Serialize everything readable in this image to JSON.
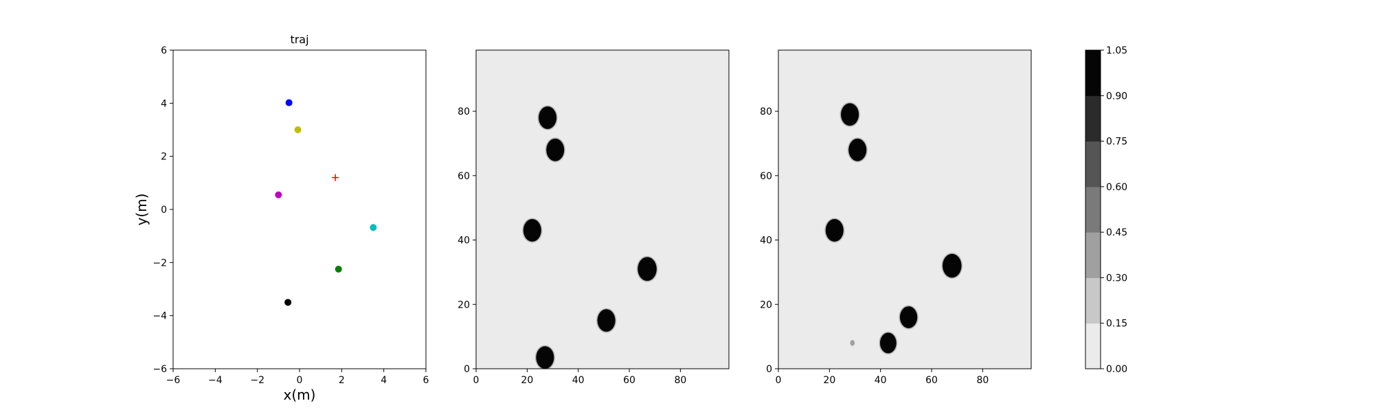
{
  "chart_data": [
    {
      "type": "scatter",
      "title": "traj",
      "xlabel": "x(m)",
      "ylabel": "y(m)",
      "xlim": [
        -6,
        6
      ],
      "ylim": [
        -6,
        6
      ],
      "xticks": [
        -6,
        -4,
        -2,
        0,
        2,
        4,
        6
      ],
      "yticks": [
        -6,
        -4,
        -2,
        0,
        2,
        4,
        6
      ],
      "grid": false,
      "points": [
        {
          "x": -0.5,
          "y": 4.02,
          "color": "#0000ff",
          "marker": "circle"
        },
        {
          "x": -0.08,
          "y": 3.0,
          "color": "#bfbf00",
          "marker": "circle"
        },
        {
          "x": -1.0,
          "y": 0.55,
          "color": "#bf00bf",
          "marker": "circle"
        },
        {
          "x": 3.5,
          "y": -0.68,
          "color": "#00bfbf",
          "marker": "circle"
        },
        {
          "x": 1.85,
          "y": -2.25,
          "color": "#008000",
          "marker": "circle"
        },
        {
          "x": -0.55,
          "y": -3.5,
          "color": "#000000",
          "marker": "circle"
        },
        {
          "x": 1.7,
          "y": 1.2,
          "color": "#ff0000",
          "marker": "plus"
        }
      ]
    },
    {
      "type": "heatmap",
      "title": "",
      "xlim": [
        0,
        99
      ],
      "ylim": [
        0,
        99
      ],
      "xticks": [
        0,
        20,
        40,
        60,
        80
      ],
      "yticks": [
        0,
        20,
        40,
        60,
        80
      ],
      "background_value": 0.0,
      "blobs": [
        {
          "x": 28,
          "y": 78,
          "r": 3.5,
          "value": 1.0
        },
        {
          "x": 31,
          "y": 68,
          "r": 3.5,
          "value": 1.0
        },
        {
          "x": 22,
          "y": 43,
          "r": 3.5,
          "value": 1.0
        },
        {
          "x": 67,
          "y": 31,
          "r": 3.7,
          "value": 1.0
        },
        {
          "x": 51,
          "y": 15,
          "r": 3.5,
          "value": 1.0
        },
        {
          "x": 27,
          "y": 3.5,
          "r": 3.5,
          "value": 1.0
        }
      ]
    },
    {
      "type": "heatmap",
      "title": "",
      "xlim": [
        0,
        99
      ],
      "ylim": [
        0,
        99
      ],
      "xticks": [
        0,
        20,
        40,
        60,
        80
      ],
      "yticks": [
        0,
        20,
        40,
        60,
        80
      ],
      "background_value": 0.0,
      "blobs": [
        {
          "x": 28,
          "y": 79,
          "r": 3.5,
          "value": 1.0
        },
        {
          "x": 31,
          "y": 68,
          "r": 3.5,
          "value": 1.0
        },
        {
          "x": 22,
          "y": 43,
          "r": 3.5,
          "value": 1.0
        },
        {
          "x": 68,
          "y": 32,
          "r": 3.7,
          "value": 1.0
        },
        {
          "x": 51,
          "y": 16,
          "r": 3.4,
          "value": 1.0
        },
        {
          "x": 43,
          "y": 8,
          "r": 3.2,
          "value": 1.0
        },
        {
          "x": 29,
          "y": 8,
          "r": 0.9,
          "value": 0.3
        }
      ],
      "colorbar": {
        "vmin": 0.0,
        "vmax": 1.05,
        "ticks": [
          "0.00",
          "0.15",
          "0.30",
          "0.45",
          "0.60",
          "0.75",
          "0.90",
          "1.05"
        ],
        "colors": [
          "#ebebeb",
          "#c8c8c8",
          "#a0a0a0",
          "#7a7a7a",
          "#555555",
          "#2b2b2b",
          "#050505"
        ]
      }
    }
  ]
}
